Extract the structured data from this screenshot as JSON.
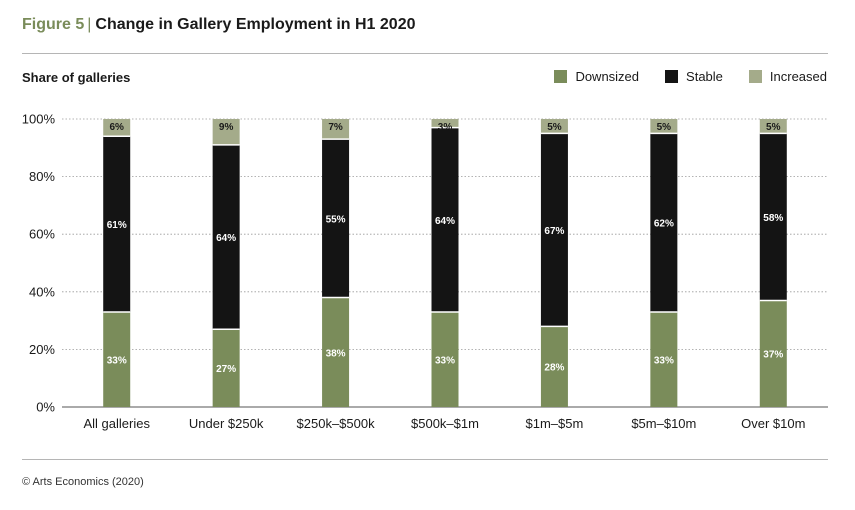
{
  "figure": {
    "number": "Figure 5",
    "separator": "|",
    "title": "Change in Gallery Employment in H1 2020",
    "source": "© Arts Economics (2020)"
  },
  "colors": {
    "downsized": "#7a8c5a",
    "stable": "#141414",
    "increased": "#a4ab8a",
    "title_accent": "#7a8c5a",
    "grid": "#9a9a9a"
  },
  "chart_data": {
    "type": "bar",
    "stacked": true,
    "title": "",
    "xlabel": "",
    "ylabel": "Share of galleries",
    "ylim": [
      0,
      100
    ],
    "yticks": [
      "0%",
      "20%",
      "40%",
      "60%",
      "80%",
      "100%"
    ],
    "grid": true,
    "legend_position": "top-right",
    "categories": [
      "All galleries",
      "Under $250k",
      "$250k–$500k",
      "$500k–$1m",
      "$1m–$5m",
      "$5m–$10m",
      "Over $10m"
    ],
    "series": [
      {
        "name": "Downsized",
        "color_key": "downsized",
        "values": [
          33,
          27,
          38,
          33,
          28,
          33,
          37
        ],
        "labels": [
          "33%",
          "27%",
          "38%",
          "33%",
          "28%",
          "33%",
          "37%"
        ]
      },
      {
        "name": "Stable",
        "color_key": "stable",
        "values": [
          61,
          64,
          55,
          64,
          67,
          62,
          58
        ],
        "labels": [
          "61%",
          "64%",
          "55%",
          "64%",
          "67%",
          "62%",
          "58%"
        ]
      },
      {
        "name": "Increased",
        "color_key": "increased",
        "values": [
          6,
          9,
          7,
          3,
          5,
          5,
          5
        ],
        "labels": [
          "6%",
          "9%",
          "7%",
          "3%",
          "5%",
          "5%",
          "5%"
        ]
      }
    ]
  }
}
